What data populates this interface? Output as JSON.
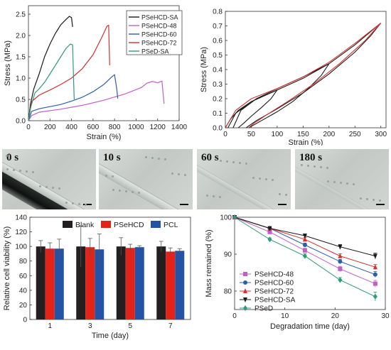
{
  "chart_data": [
    {
      "id": "stress-strain",
      "type": "line",
      "xlabel": "Strain (%)",
      "ylabel": "Stress (MPa)",
      "xlim": [
        0,
        1400
      ],
      "ylim": [
        0,
        2.7
      ],
      "xticks": [
        "0",
        "200",
        "400",
        "600",
        "800",
        "1000",
        "1200",
        "1400"
      ],
      "yticks": [
        "0.0",
        "0.5",
        "1.0",
        "1.5",
        "2.0",
        "2.5"
      ],
      "legend": "top-left",
      "series": [
        {
          "name": "PSeHCD-SA",
          "color": "#1a1a1a",
          "points": [
            [
              0,
              0
            ],
            [
              20,
              0.4
            ],
            [
              50,
              0.75
            ],
            [
              100,
              1.1
            ],
            [
              150,
              1.5
            ],
            [
              200,
              1.8
            ],
            [
              250,
              2.05
            ],
            [
              300,
              2.25
            ],
            [
              350,
              2.38
            ],
            [
              380,
              2.45
            ],
            [
              400,
              2.42
            ],
            [
              410,
              2.2
            ]
          ]
        },
        {
          "name": "PSeHCD-48",
          "color": "#c15fc8",
          "points": [
            [
              0,
              0
            ],
            [
              30,
              0.12
            ],
            [
              100,
              0.2
            ],
            [
              300,
              0.27
            ],
            [
              500,
              0.36
            ],
            [
              700,
              0.48
            ],
            [
              900,
              0.63
            ],
            [
              1050,
              0.78
            ],
            [
              1100,
              0.88
            ],
            [
              1150,
              0.92
            ],
            [
              1200,
              0.89
            ],
            [
              1240,
              0.93
            ],
            [
              1260,
              0.4
            ]
          ]
        },
        {
          "name": "PSeHCD-60",
          "color": "#2d5fa8",
          "points": [
            [
              0,
              0
            ],
            [
              30,
              0.22
            ],
            [
              100,
              0.28
            ],
            [
              200,
              0.33
            ],
            [
              300,
              0.38
            ],
            [
              400,
              0.46
            ],
            [
              500,
              0.55
            ],
            [
              600,
              0.68
            ],
            [
              700,
              0.85
            ],
            [
              770,
              1.02
            ],
            [
              800,
              1.08
            ],
            [
              820,
              0.75
            ],
            [
              830,
              0.52
            ]
          ]
        },
        {
          "name": "PSeHCD-72",
          "color": "#d6312e",
          "points": [
            [
              0,
              0
            ],
            [
              30,
              0.45
            ],
            [
              100,
              0.6
            ],
            [
              200,
              0.72
            ],
            [
              300,
              0.85
            ],
            [
              400,
              1.0
            ],
            [
              500,
              1.22
            ],
            [
              600,
              1.55
            ],
            [
              680,
              1.95
            ],
            [
              730,
              2.22
            ],
            [
              745,
              2.24
            ],
            [
              755,
              1.3
            ]
          ]
        },
        {
          "name": "PSeD-SA",
          "color": "#2f9a7c",
          "points": [
            [
              0,
              0
            ],
            [
              20,
              0.3
            ],
            [
              60,
              0.65
            ],
            [
              100,
              0.75
            ],
            [
              150,
              0.9
            ],
            [
              200,
              1.1
            ],
            [
              250,
              1.3
            ],
            [
              300,
              1.5
            ],
            [
              350,
              1.7
            ],
            [
              390,
              1.8
            ],
            [
              410,
              1.78
            ],
            [
              420,
              0.9
            ],
            [
              425,
              0.5
            ]
          ]
        }
      ]
    },
    {
      "id": "cyclic",
      "type": "line",
      "xlabel": "Strain (%)",
      "ylabel": "Stress (MPa)",
      "xlim": [
        0,
        310
      ],
      "ylim": [
        0,
        0.8
      ],
      "xticks": [
        "0",
        "50",
        "100",
        "150",
        "200",
        "250",
        "300"
      ],
      "yticks": [
        "0.0",
        "0.1",
        "0.2",
        "0.3",
        "0.4",
        "0.5",
        "0.6",
        "0.7",
        "0.8"
      ],
      "series": [
        {
          "color": "#1a1a1a",
          "points": [
            [
              0,
              0
            ],
            [
              10,
              0.06
            ],
            [
              25,
              0.12
            ],
            [
              50,
              0.18
            ],
            [
              75,
              0.22
            ],
            [
              100,
              0.26
            ],
            [
              88,
              0.2
            ],
            [
              70,
              0.14
            ],
            [
              50,
              0.08
            ],
            [
              35,
              0.03
            ],
            [
              25,
              0
            ]
          ]
        },
        {
          "color": "#1a1a1a",
          "points": [
            [
              5,
              0
            ],
            [
              20,
              0.1
            ],
            [
              50,
              0.18
            ],
            [
              100,
              0.26
            ],
            [
              150,
              0.34
            ],
            [
              200,
              0.44
            ],
            [
              185,
              0.36
            ],
            [
              160,
              0.27
            ],
            [
              130,
              0.18
            ],
            [
              100,
              0.11
            ],
            [
              70,
              0.05
            ],
            [
              45,
              0
            ]
          ]
        },
        {
          "color": "#1a1a1a",
          "points": [
            [
              15,
              0
            ],
            [
              30,
              0.12
            ],
            [
              60,
              0.2
            ],
            [
              100,
              0.27
            ],
            [
              150,
              0.35
            ],
            [
              200,
              0.44
            ],
            [
              250,
              0.57
            ],
            [
              300,
              0.72
            ],
            [
              280,
              0.63
            ],
            [
              250,
              0.52
            ],
            [
              200,
              0.37
            ],
            [
              150,
              0.24
            ],
            [
              100,
              0.13
            ],
            [
              60,
              0.05
            ],
            [
              40,
              0
            ]
          ]
        },
        {
          "color": "#d6312e",
          "points": [
            [
              0,
              0
            ],
            [
              20,
              0.12
            ],
            [
              50,
              0.2
            ],
            [
              100,
              0.27
            ],
            [
              150,
              0.35
            ],
            [
              200,
              0.45
            ],
            [
              250,
              0.58
            ],
            [
              300,
              0.72
            ],
            [
              270,
              0.6
            ],
            [
              220,
              0.44
            ],
            [
              170,
              0.3
            ],
            [
              120,
              0.18
            ],
            [
              80,
              0.09
            ],
            [
              55,
              0.03
            ],
            [
              45,
              0
            ]
          ]
        }
      ]
    },
    {
      "id": "viability",
      "type": "bar",
      "xlabel": "Time (day)",
      "ylabel": "Relative cell viability (%)",
      "ylim": [
        0,
        140
      ],
      "yticks": [
        "0",
        "20",
        "40",
        "60",
        "80",
        "100",
        "120",
        "140"
      ],
      "categories": [
        "1",
        "3",
        "5",
        "7"
      ],
      "legend": "top",
      "series": [
        {
          "name": "Blank",
          "color": "#231f20",
          "values": [
            100,
            100,
            100,
            100
          ],
          "errors": [
            8,
            28,
            12,
            7
          ]
        },
        {
          "name": "PSeHCD",
          "color": "#e2231a",
          "values": [
            97,
            99,
            98,
            93
          ],
          "errors": [
            8,
            12,
            5,
            5
          ]
        },
        {
          "name": "PCL",
          "color": "#2452a4",
          "values": [
            97,
            96,
            99,
            94
          ],
          "errors": [
            13,
            21,
            2,
            3
          ]
        }
      ]
    },
    {
      "id": "degradation",
      "type": "line",
      "xlabel": "Degradation time (day)",
      "ylabel": "Mass remained (%)",
      "xlim": [
        0,
        30
      ],
      "ylim": [
        75,
        100
      ],
      "xticks": [
        "0",
        "10",
        "20",
        "30"
      ],
      "yticks": [
        "80",
        "90",
        "100"
      ],
      "legend": "bottom-left",
      "x": [
        0,
        7,
        14,
        21,
        28
      ],
      "series": [
        {
          "name": "PSeHCD-48",
          "color": "#c15fc8",
          "marker": "square",
          "values": [
            100,
            96,
            91,
            86,
            82
          ],
          "errors": [
            0,
            0.5,
            0.6,
            0.7,
            0.9
          ]
        },
        {
          "name": "PSeHCD-60",
          "color": "#2d5fa8",
          "marker": "circle",
          "values": [
            100,
            97,
            92.5,
            88,
            84.5
          ],
          "errors": [
            0,
            0.4,
            0.5,
            0.6,
            0.8
          ]
        },
        {
          "name": "PSeHCD-72",
          "color": "#d6312e",
          "marker": "triangle-up",
          "values": [
            100,
            97,
            94,
            89.5,
            86.5
          ],
          "errors": [
            0,
            0.4,
            0.5,
            0.6,
            0.7
          ]
        },
        {
          "name": "PSeHCD-SA",
          "color": "#1a1a1a",
          "marker": "triangle-down",
          "values": [
            100,
            97,
            95,
            92,
            89.5
          ],
          "errors": [
            0,
            0.4,
            0.5,
            0.6,
            0.8
          ]
        },
        {
          "name": "PSeD",
          "color": "#2f9a7c",
          "marker": "diamond",
          "values": [
            100,
            94,
            89.5,
            83,
            78.5
          ],
          "errors": [
            0,
            0.4,
            0.6,
            0.7,
            1.2
          ]
        }
      ]
    }
  ],
  "photos": [
    {
      "label": "0 s"
    },
    {
      "label": "10 s"
    },
    {
      "label": "60 s"
    },
    {
      "label": "180 s"
    }
  ]
}
